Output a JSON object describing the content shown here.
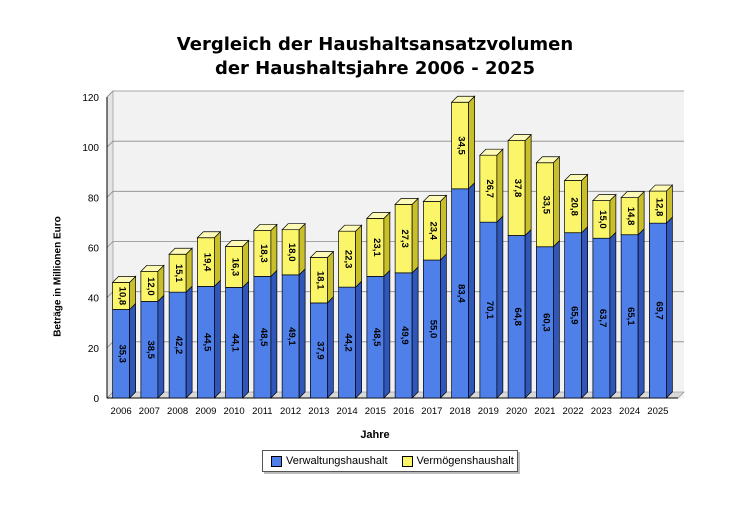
{
  "chart_data": {
    "type": "bar",
    "stacked": true,
    "title": [
      "Vergleich der Haushaltsansatzvolumen",
      "der Haushaltsjahre 2006 - 2025"
    ],
    "xlabel": "Jahre",
    "ylabel": "Beträge in Millionen Euro",
    "ylim": [
      0,
      120
    ],
    "yticks": [
      0,
      20,
      40,
      60,
      80,
      100,
      120
    ],
    "grid": true,
    "legend_position": "bottom",
    "categories": [
      "2006",
      "2007",
      "2008",
      "2009",
      "2010",
      "2011",
      "2012",
      "2013",
      "2014",
      "2015",
      "2016",
      "2017",
      "2018",
      "2019",
      "2020",
      "2021",
      "2022",
      "2023",
      "2024",
      "2025"
    ],
    "series": [
      {
        "name": "Verwaltungshaushalt",
        "color": "#4f7fe8",
        "values": [
          35.3,
          38.5,
          42.2,
          44.5,
          44.1,
          48.5,
          49.1,
          37.9,
          44.2,
          48.5,
          49.9,
          55.0,
          83.4,
          70.1,
          64.8,
          60.3,
          65.9,
          63.7,
          65.1,
          69.7
        ],
        "labels": [
          "35,3",
          "38,5",
          "42,2",
          "44,5",
          "44,1",
          "48,5",
          "49,1",
          "37,9",
          "44,2",
          "48,5",
          "49,9",
          "55,0",
          "83,4",
          "70,1",
          "64,8",
          "60,3",
          "65,9",
          "63,7",
          "65,1",
          "69,7"
        ]
      },
      {
        "name": "Vermögenshaushalt",
        "color": "#fbf56a",
        "values": [
          10.8,
          12.0,
          15.1,
          19.4,
          16.3,
          18.3,
          18.0,
          18.1,
          22.3,
          23.1,
          27.3,
          23.4,
          34.5,
          26.7,
          37.8,
          33.5,
          20.8,
          15.0,
          14.8,
          12.8
        ],
        "labels": [
          "10,8",
          "12,0",
          "15,1",
          "19,4",
          "16,3",
          "18,3",
          "18,0",
          "18,1",
          "22,3",
          "23,1",
          "27,3",
          "23,4",
          "34,5",
          "26,7",
          "37,8",
          "33,5",
          "20,8",
          "15,0",
          "14,8",
          "12,8"
        ]
      }
    ]
  }
}
